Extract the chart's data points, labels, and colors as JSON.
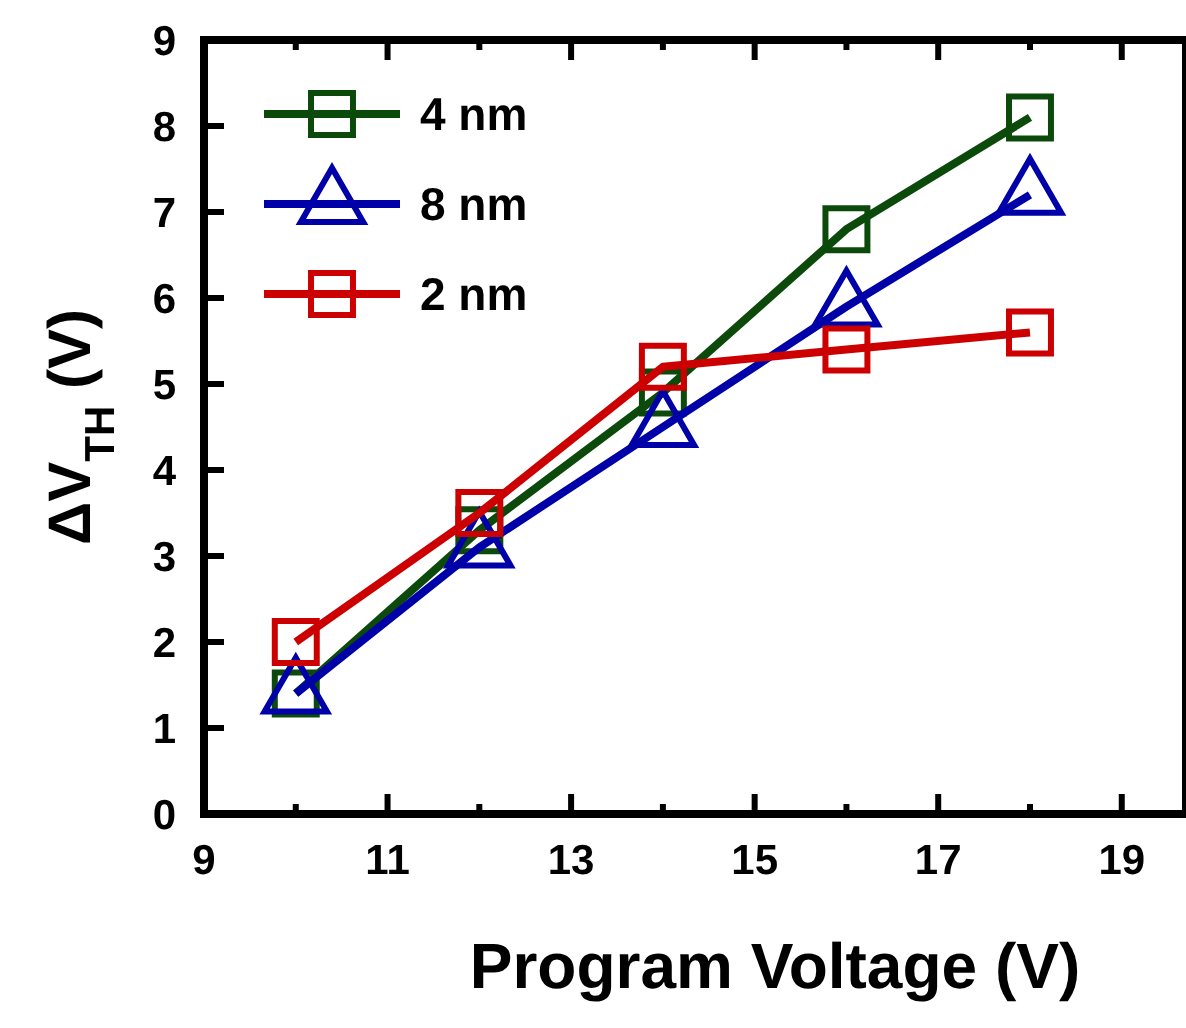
{
  "chart_data": {
    "type": "line",
    "xlabel": "Program Voltage (V)",
    "ylabel": "ΔV$_{TH}$ (V)",
    "x": [
      10,
      12,
      14,
      16,
      18
    ],
    "xlim": [
      9,
      19.7
    ],
    "xticks": [
      9,
      {
        "value": 10,
        "label": null
      },
      11,
      {
        "value": 12,
        "label": null
      },
      13,
      {
        "value": 14,
        "label": null
      },
      15,
      {
        "value": 16,
        "label": null
      },
      17,
      {
        "value": 18,
        "label": null
      },
      19
    ],
    "ylim": [
      0,
      9
    ],
    "yticks": [
      0,
      1,
      2,
      3,
      4,
      5,
      6,
      7,
      8,
      9
    ],
    "grid": false,
    "legend": "top left",
    "series": [
      {
        "name": "4 nm",
        "color": "#0b4a0b",
        "marker": "square",
        "values": [
          1.4,
          3.3,
          4.9,
          6.8,
          8.1
        ]
      },
      {
        "name": "8 nm",
        "color": "#0000a8",
        "marker": "triangle",
        "values": [
          1.4,
          3.1,
          4.5,
          5.9,
          7.2
        ]
      },
      {
        "name": "2 nm",
        "color": "#cc0000",
        "marker": "square",
        "values": [
          2.0,
          3.5,
          5.2,
          5.4,
          5.6
        ]
      }
    ]
  }
}
